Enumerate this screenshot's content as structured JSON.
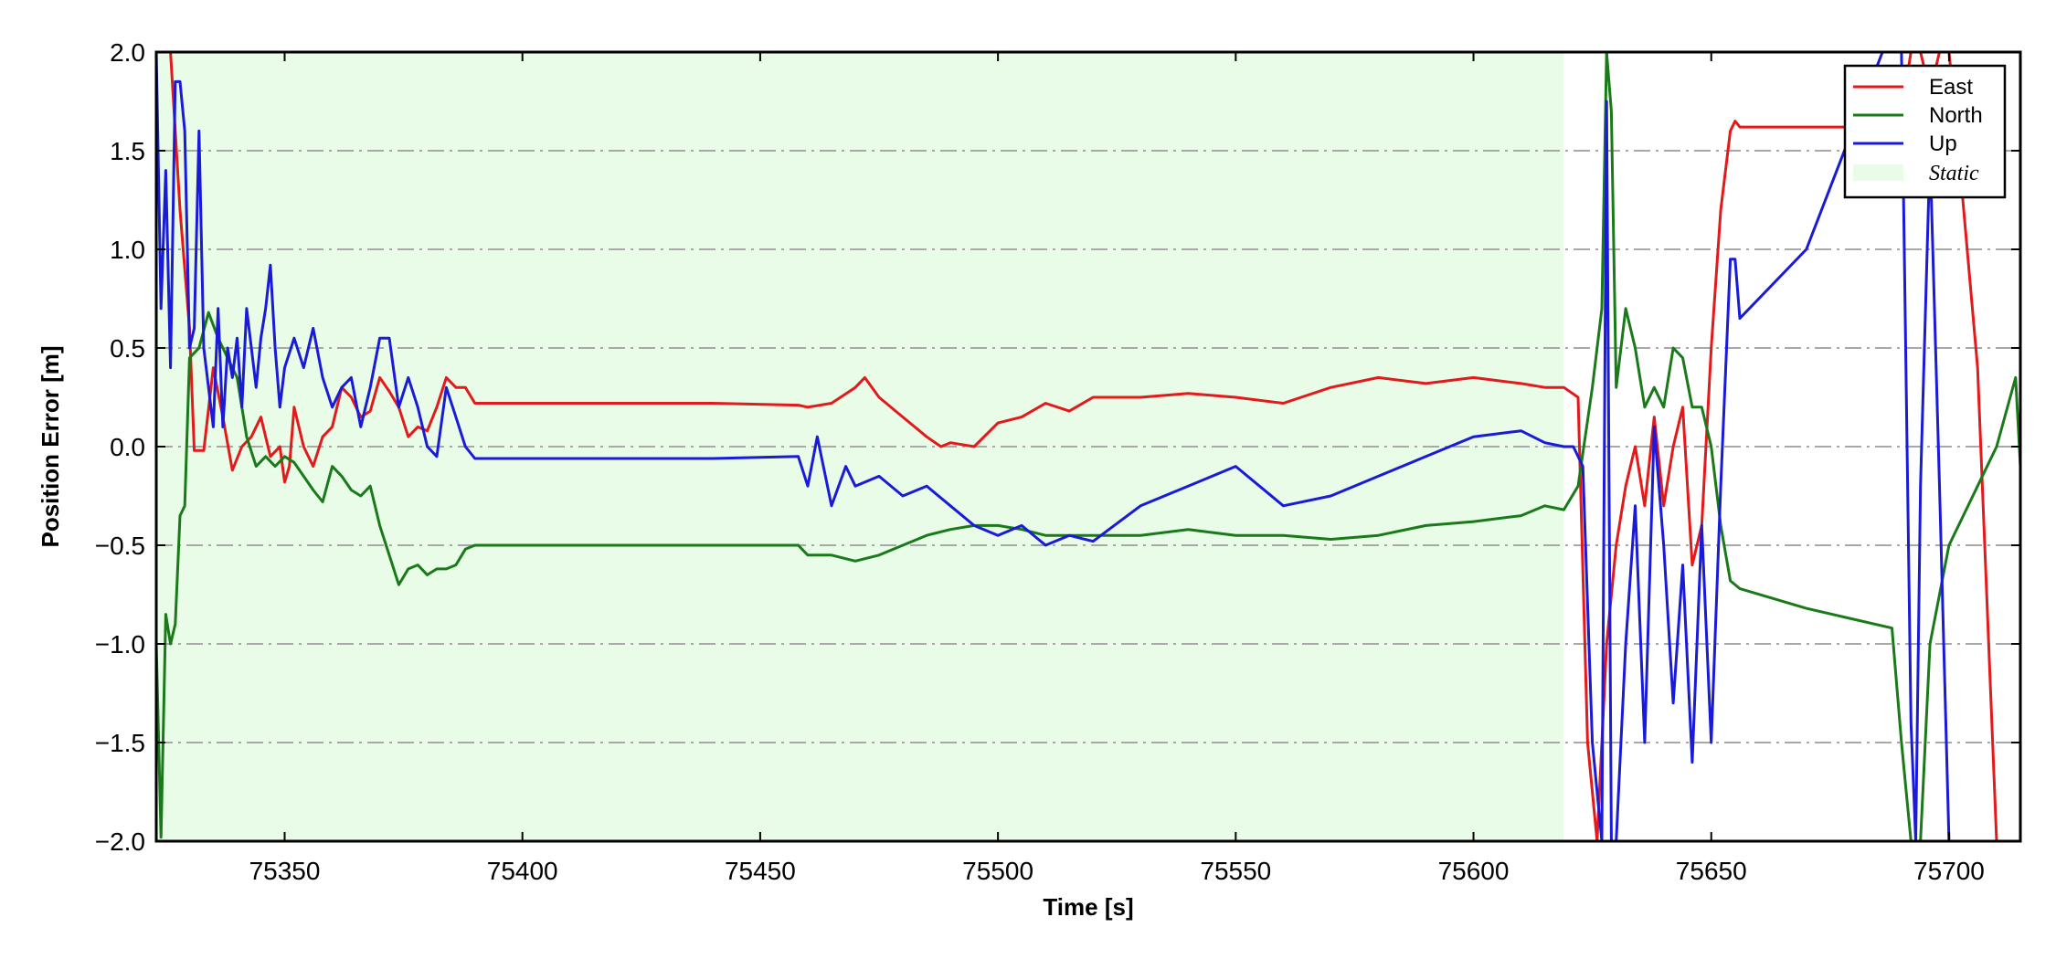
{
  "chart_data": {
    "type": "line",
    "xlabel": "Time [s]",
    "ylabel": "Position Error [m]",
    "xlim": [
      75323,
      75715
    ],
    "ylim": [
      -2.0,
      2.0
    ],
    "x_ticks": [
      75350,
      75400,
      75450,
      75500,
      75550,
      75600,
      75650,
      75700
    ],
    "x_tick_labels": [
      "75350",
      "75400",
      "75450",
      "75500",
      "75550",
      "75600",
      "75650",
      "75700"
    ],
    "y_ticks": [
      2.0,
      1.5,
      1.0,
      0.5,
      0.0,
      -0.5,
      -1.0,
      -1.5,
      -2.0
    ],
    "y_tick_labels": [
      "2.0",
      "1.5",
      "1.0",
      "0.5",
      "0.0",
      "−0.5",
      "−1.0",
      "−1.5",
      "−2.0"
    ],
    "grid": "horizontal dash-dot",
    "legend_position": "top-right",
    "static_region": {
      "label": "Static",
      "x_start": 75323,
      "x_end": 75619,
      "color": "#e8fce8"
    },
    "series": [
      {
        "name": "East",
        "color": "#e31a1c",
        "x": [
          75323,
          75326,
          75328,
          75330,
          75331,
          75333,
          75335,
          75337,
          75339,
          75341,
          75343,
          75345,
          75347,
          75349,
          75350,
          75351,
          75352,
          75354,
          75356,
          75358,
          75360,
          75362,
          75364,
          75366,
          75368,
          75370,
          75372,
          75374,
          75376,
          75378,
          75380,
          75382,
          75384,
          75386,
          75388,
          75390,
          75400,
          75420,
          75440,
          75458,
          75460,
          75465,
          75470,
          75472,
          75475,
          75480,
          75485,
          75488,
          75490,
          75495,
          75500,
          75505,
          75510,
          75515,
          75520,
          75530,
          75540,
          75550,
          75560,
          75570,
          75580,
          75590,
          75600,
          75610,
          75615,
          75619,
          75622,
          75624,
          75626,
          75628,
          75630,
          75632,
          75634,
          75636,
          75638,
          75640,
          75642,
          75644,
          75646,
          75648,
          75650,
          75652,
          75654,
          75655,
          75656,
          75660,
          75670,
          75680,
          75686,
          75688,
          75690,
          75692,
          75694,
          75696,
          75698,
          75700,
          75702,
          75706,
          75710,
          75715
        ],
        "y": [
          2.0,
          2.0,
          1.2,
          0.6,
          -0.02,
          -0.02,
          0.4,
          0.15,
          -0.12,
          0.0,
          0.05,
          0.15,
          -0.05,
          0.0,
          -0.18,
          -0.1,
          0.2,
          0.0,
          -0.1,
          0.05,
          0.1,
          0.3,
          0.25,
          0.15,
          0.18,
          0.35,
          0.28,
          0.2,
          0.05,
          0.1,
          0.08,
          0.2,
          0.35,
          0.3,
          0.3,
          0.22,
          0.22,
          0.22,
          0.22,
          0.21,
          0.2,
          0.22,
          0.3,
          0.35,
          0.25,
          0.15,
          0.05,
          0.0,
          0.02,
          0.0,
          0.12,
          0.15,
          0.22,
          0.18,
          0.25,
          0.25,
          0.27,
          0.25,
          0.22,
          0.3,
          0.35,
          0.32,
          0.35,
          0.32,
          0.3,
          0.3,
          0.25,
          -1.5,
          -2.0,
          -1.0,
          -0.5,
          -0.2,
          0.0,
          -0.3,
          0.15,
          -0.3,
          0.0,
          0.2,
          -0.6,
          -0.4,
          0.5,
          1.2,
          1.6,
          1.65,
          1.62,
          1.62,
          1.62,
          1.62,
          1.62,
          1.6,
          1.7,
          2.0,
          2.0,
          1.8,
          2.0,
          2.0,
          1.5,
          0.4,
          -2.0,
          -2.0
        ]
      },
      {
        "name": "North",
        "color": "#1a7a1a",
        "x": [
          75323,
          75324,
          75325,
          75326,
          75327,
          75328,
          75329,
          75330,
          75332,
          75334,
          75336,
          75338,
          75340,
          75342,
          75344,
          75346,
          75348,
          75350,
          75352,
          75354,
          75356,
          75358,
          75360,
          75362,
          75364,
          75366,
          75368,
          75370,
          75372,
          75374,
          75376,
          75378,
          75380,
          75382,
          75384,
          75386,
          75388,
          75390,
          75400,
          75420,
          75440,
          75458,
          75460,
          75465,
          75470,
          75475,
          75480,
          75485,
          75490,
          75495,
          75500,
          75505,
          75510,
          75520,
          75530,
          75540,
          75550,
          75560,
          75570,
          75580,
          75590,
          75600,
          75610,
          75615,
          75619,
          75622,
          75625,
          75627,
          75628,
          75629,
          75630,
          75632,
          75634,
          75636,
          75638,
          75640,
          75642,
          75644,
          75646,
          75648,
          75650,
          75652,
          75654,
          75656,
          75670,
          75688,
          75690,
          75692,
          75694,
          75696,
          75700,
          75706,
          75710,
          75714,
          75715
        ],
        "y": [
          -1.0,
          -1.98,
          -0.85,
          -1.0,
          -0.9,
          -0.35,
          -0.3,
          0.45,
          0.5,
          0.68,
          0.55,
          0.45,
          0.35,
          0.05,
          -0.1,
          -0.05,
          -0.1,
          -0.05,
          -0.08,
          -0.15,
          -0.22,
          -0.28,
          -0.1,
          -0.15,
          -0.22,
          -0.25,
          -0.2,
          -0.4,
          -0.55,
          -0.7,
          -0.62,
          -0.6,
          -0.65,
          -0.62,
          -0.62,
          -0.6,
          -0.52,
          -0.5,
          -0.5,
          -0.5,
          -0.5,
          -0.5,
          -0.55,
          -0.55,
          -0.58,
          -0.55,
          -0.5,
          -0.45,
          -0.42,
          -0.4,
          -0.4,
          -0.42,
          -0.45,
          -0.45,
          -0.45,
          -0.42,
          -0.45,
          -0.45,
          -0.47,
          -0.45,
          -0.4,
          -0.38,
          -0.35,
          -0.3,
          -0.32,
          -0.2,
          0.3,
          0.7,
          2.0,
          1.7,
          0.3,
          0.7,
          0.5,
          0.2,
          0.3,
          0.2,
          0.5,
          0.45,
          0.2,
          0.2,
          0.0,
          -0.4,
          -0.68,
          -0.72,
          -0.82,
          -0.92,
          -1.5,
          -2.0,
          -2.0,
          -1.0,
          -0.5,
          -0.2,
          0.0,
          0.35,
          -0.1
        ]
      },
      {
        "name": "Up",
        "color": "#1a1ad9",
        "x": [
          75323,
          75324,
          75325,
          75326,
          75327,
          75328,
          75329,
          75330,
          75331,
          75332,
          75333,
          75334,
          75335,
          75336,
          75337,
          75338,
          75339,
          75340,
          75341,
          75342,
          75343,
          75344,
          75345,
          75346,
          75347,
          75348,
          75349,
          75350,
          75352,
          75354,
          75356,
          75358,
          75360,
          75362,
          75364,
          75366,
          75368,
          75370,
          75372,
          75374,
          75376,
          75378,
          75380,
          75382,
          75384,
          75386,
          75388,
          75390,
          75400,
          75420,
          75440,
          75458,
          75460,
          75462,
          75465,
          75468,
          75470,
          75475,
          75480,
          75485,
          75490,
          75495,
          75500,
          75505,
          75510,
          75515,
          75520,
          75530,
          75540,
          75550,
          75560,
          75570,
          75580,
          75590,
          75600,
          75610,
          75615,
          75619,
          75621,
          75623,
          75625,
          75627,
          75628,
          75629,
          75630,
          75632,
          75634,
          75636,
          75638,
          75640,
          75642,
          75644,
          75646,
          75648,
          75650,
          75652,
          75654,
          75655,
          75656,
          75670,
          75686,
          75688,
          75690,
          75692,
          75693,
          75694,
          75696,
          75698,
          75700,
          75706,
          75710,
          75715
        ],
        "y": [
          2.0,
          0.7,
          1.4,
          0.4,
          1.85,
          1.85,
          1.6,
          0.5,
          0.6,
          1.6,
          0.5,
          0.3,
          0.1,
          0.7,
          0.1,
          0.5,
          0.35,
          0.55,
          0.2,
          0.7,
          0.5,
          0.3,
          0.55,
          0.7,
          0.92,
          0.5,
          0.2,
          0.4,
          0.55,
          0.4,
          0.6,
          0.35,
          0.2,
          0.3,
          0.35,
          0.1,
          0.3,
          0.55,
          0.55,
          0.2,
          0.35,
          0.2,
          0.0,
          -0.05,
          0.3,
          0.15,
          0.0,
          -0.06,
          -0.06,
          -0.06,
          -0.06,
          -0.05,
          -0.2,
          0.05,
          -0.3,
          -0.1,
          -0.2,
          -0.15,
          -0.25,
          -0.2,
          -0.3,
          -0.4,
          -0.45,
          -0.4,
          -0.5,
          -0.45,
          -0.48,
          -0.3,
          -0.2,
          -0.1,
          -0.3,
          -0.25,
          -0.15,
          -0.05,
          0.05,
          0.08,
          0.02,
          0.0,
          0.0,
          -0.1,
          -1.5,
          -2.0,
          1.75,
          -2.0,
          -2.0,
          -1.0,
          -0.3,
          -1.5,
          0.1,
          -0.5,
          -1.3,
          -0.6,
          -1.6,
          -0.4,
          -1.5,
          -0.2,
          0.95,
          0.95,
          0.65,
          1.0,
          2.0,
          2.0,
          2.0,
          -1.4,
          -2.0,
          -0.2,
          1.5,
          -0.2,
          -2.0,
          -2.0,
          -2.0,
          -2.0
        ]
      }
    ]
  }
}
